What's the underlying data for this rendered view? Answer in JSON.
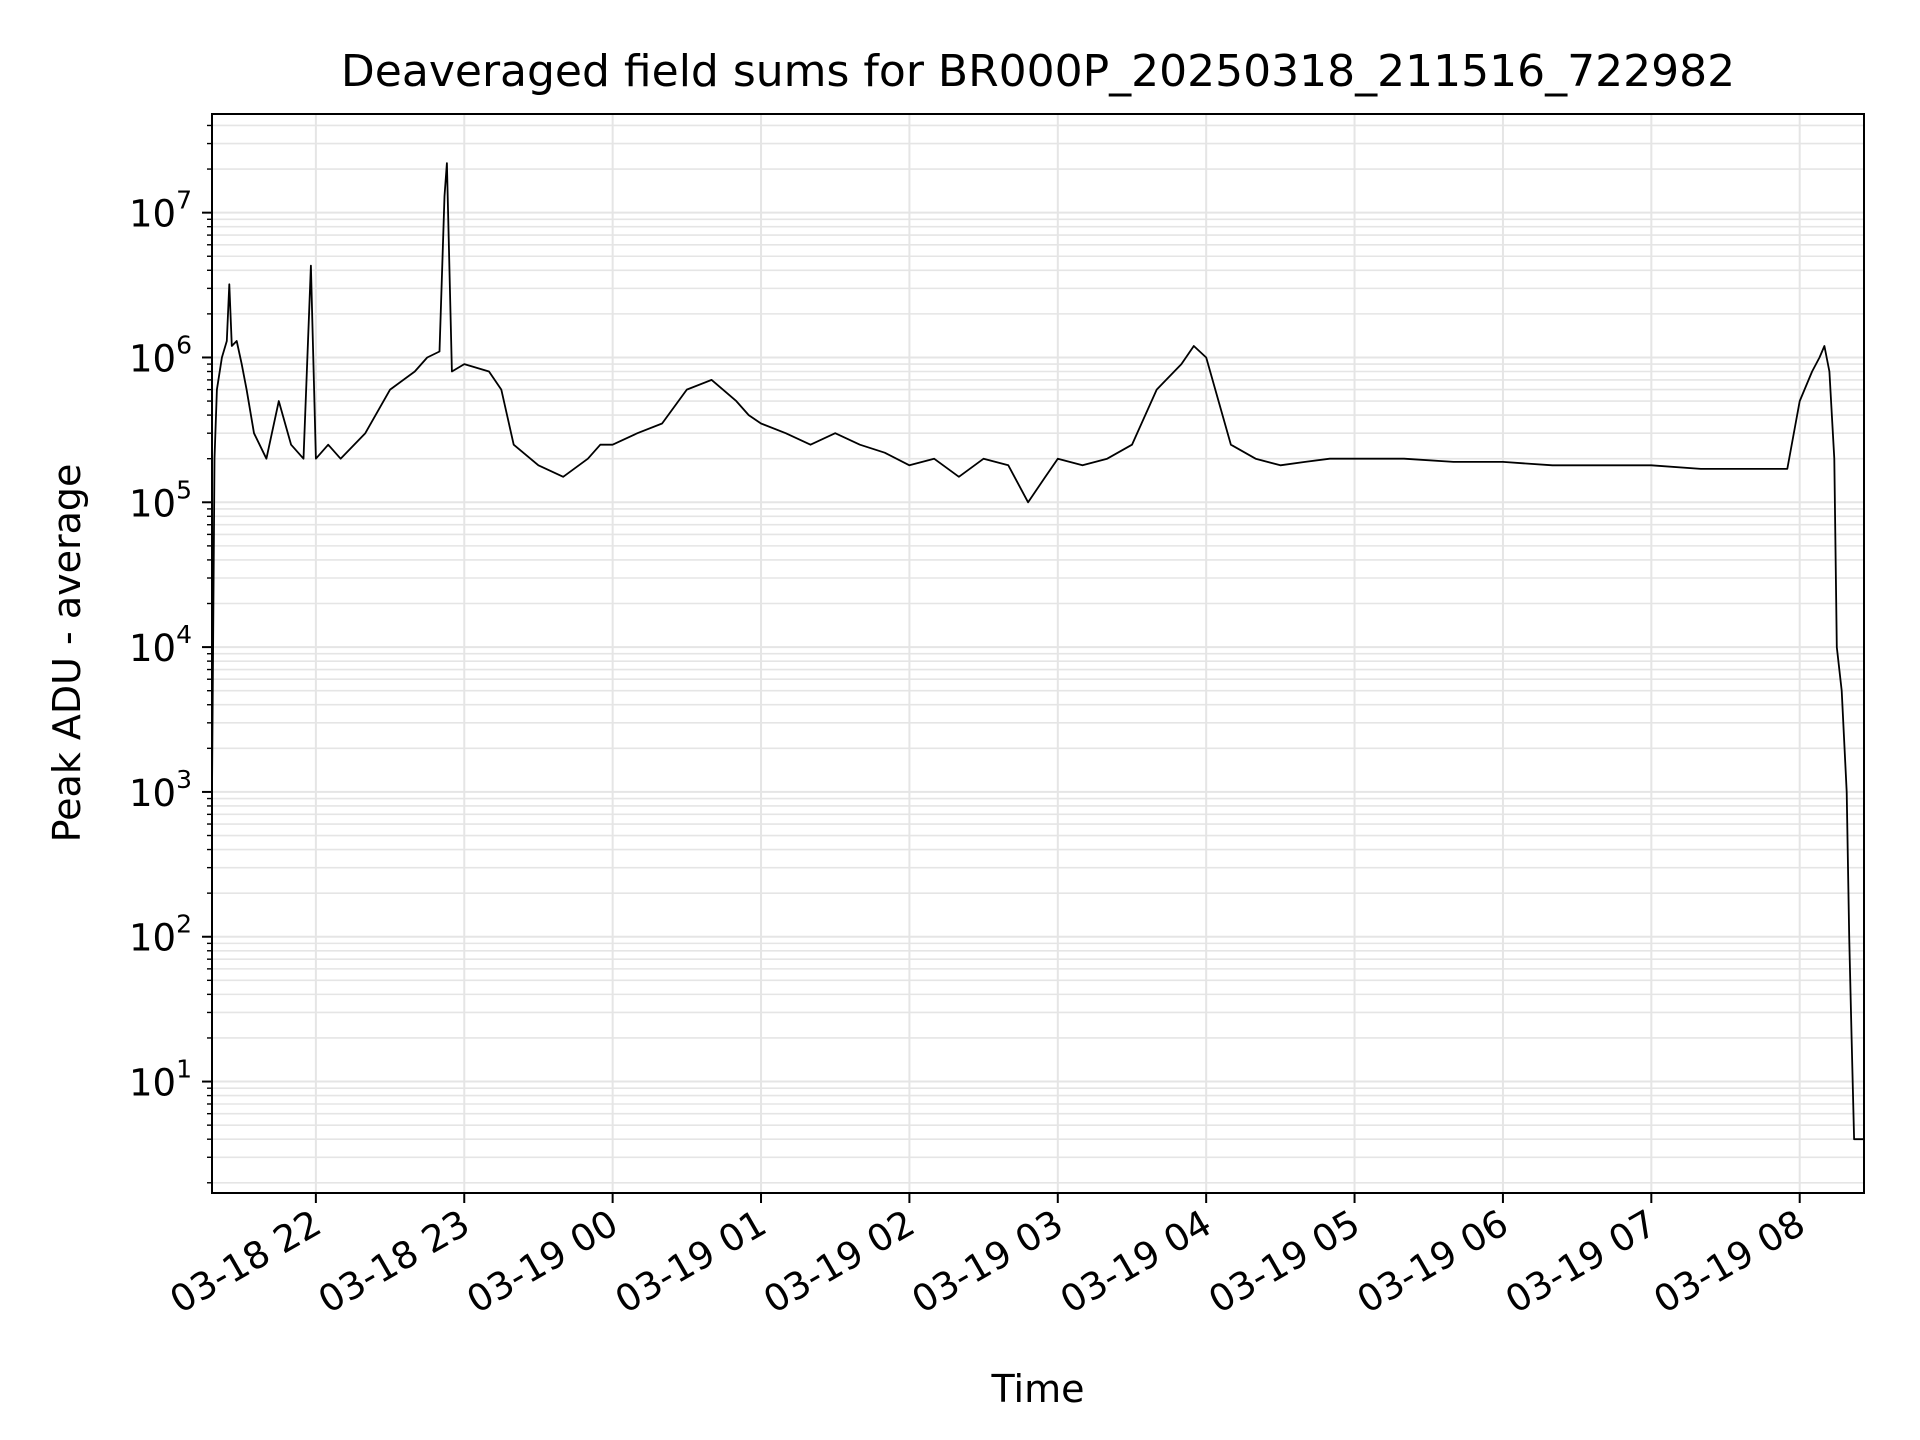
{
  "chart_data": {
    "type": "line",
    "title": "Deaveraged field sums for BR000P_20250318_211516_722982",
    "xlabel": "Time",
    "ylabel": "Peak ADU - average",
    "yscale": "log",
    "grid": true,
    "grid_minor": true,
    "line_color": "#000000",
    "grid_color": "#e5e5e5",
    "xlim": [
      "2025-03-18T21:18",
      "2025-03-19T08:26"
    ],
    "ylim": [
      1.7,
      48000000
    ],
    "x_ticks": [
      {
        "value": "2025-03-18T22:00",
        "label": "03-18 22"
      },
      {
        "value": "2025-03-18T23:00",
        "label": "03-18 23"
      },
      {
        "value": "2025-03-19T00:00",
        "label": "03-19 00"
      },
      {
        "value": "2025-03-19T01:00",
        "label": "03-19 01"
      },
      {
        "value": "2025-03-19T02:00",
        "label": "03-19 02"
      },
      {
        "value": "2025-03-19T03:00",
        "label": "03-19 03"
      },
      {
        "value": "2025-03-19T04:00",
        "label": "03-19 04"
      },
      {
        "value": "2025-03-19T05:00",
        "label": "03-19 05"
      },
      {
        "value": "2025-03-19T06:00",
        "label": "03-19 06"
      },
      {
        "value": "2025-03-19T07:00",
        "label": "03-19 07"
      },
      {
        "value": "2025-03-19T08:00",
        "label": "03-19 08"
      }
    ],
    "y_ticks": [
      {
        "value": 10,
        "base": "10",
        "exp": "1"
      },
      {
        "value": 100,
        "base": "10",
        "exp": "2"
      },
      {
        "value": 1000,
        "base": "10",
        "exp": "3"
      },
      {
        "value": 10000,
        "base": "10",
        "exp": "4"
      },
      {
        "value": 100000,
        "base": "10",
        "exp": "5"
      },
      {
        "value": 1000000,
        "base": "10",
        "exp": "6"
      },
      {
        "value": 10000000,
        "base": "10",
        "exp": "7"
      }
    ],
    "series": [
      {
        "x": [
          "2025-03-18T21:18",
          "2025-03-18T21:19",
          "2025-03-18T21:20",
          "2025-03-18T21:22",
          "2025-03-18T21:24",
          "2025-03-18T21:25",
          "2025-03-18T21:26",
          "2025-03-18T21:28",
          "2025-03-18T21:30",
          "2025-03-18T21:32",
          "2025-03-18T21:35",
          "2025-03-18T21:40",
          "2025-03-18T21:45",
          "2025-03-18T21:50",
          "2025-03-18T21:55",
          "2025-03-18T21:58",
          "2025-03-18T22:00",
          "2025-03-18T22:05",
          "2025-03-18T22:10",
          "2025-03-18T22:20",
          "2025-03-18T22:30",
          "2025-03-18T22:40",
          "2025-03-18T22:45",
          "2025-03-18T22:50",
          "2025-03-18T22:52",
          "2025-03-18T22:53",
          "2025-03-18T22:55",
          "2025-03-18T23:00",
          "2025-03-18T23:10",
          "2025-03-18T23:15",
          "2025-03-18T23:20",
          "2025-03-18T23:30",
          "2025-03-18T23:40",
          "2025-03-18T23:50",
          "2025-03-18T23:55",
          "2025-03-19T00:00",
          "2025-03-19T00:10",
          "2025-03-19T00:20",
          "2025-03-19T00:30",
          "2025-03-19T00:40",
          "2025-03-19T00:50",
          "2025-03-19T00:55",
          "2025-03-19T01:00",
          "2025-03-19T01:10",
          "2025-03-19T01:20",
          "2025-03-19T01:30",
          "2025-03-19T01:40",
          "2025-03-19T01:50",
          "2025-03-19T02:00",
          "2025-03-19T02:10",
          "2025-03-19T02:20",
          "2025-03-19T02:30",
          "2025-03-19T02:40",
          "2025-03-19T02:48",
          "2025-03-19T02:55",
          "2025-03-19T03:00",
          "2025-03-19T03:10",
          "2025-03-19T03:20",
          "2025-03-19T03:30",
          "2025-03-19T03:40",
          "2025-03-19T03:50",
          "2025-03-19T03:55",
          "2025-03-19T04:00",
          "2025-03-19T04:10",
          "2025-03-19T04:20",
          "2025-03-19T04:30",
          "2025-03-19T04:40",
          "2025-03-19T04:50",
          "2025-03-19T05:00",
          "2025-03-19T05:20",
          "2025-03-19T05:40",
          "2025-03-19T06:00",
          "2025-03-19T06:20",
          "2025-03-19T06:40",
          "2025-03-19T07:00",
          "2025-03-19T07:20",
          "2025-03-19T07:40",
          "2025-03-19T07:55",
          "2025-03-19T08:00",
          "2025-03-19T08:05",
          "2025-03-19T08:08",
          "2025-03-19T08:10",
          "2025-03-19T08:12",
          "2025-03-19T08:14",
          "2025-03-19T08:15",
          "2025-03-19T08:17",
          "2025-03-19T08:19",
          "2025-03-19T08:20",
          "2025-03-19T08:21",
          "2025-03-19T08:22",
          "2025-03-19T08:23",
          "2025-03-19T08:24",
          "2025-03-19T08:25",
          "2025-03-19T08:26"
        ],
        "y": [
          1000,
          200000,
          600000,
          1000000,
          1300000,
          3200000,
          1200000,
          1300000,
          900000,
          600000,
          300000,
          200000,
          500000,
          250000,
          200000,
          4300000,
          200000,
          250000,
          200000,
          300000,
          600000,
          800000,
          1000000,
          1100000,
          13000000,
          22000000,
          800000,
          900000,
          800000,
          600000,
          250000,
          180000,
          150000,
          200000,
          250000,
          250000,
          300000,
          350000,
          600000,
          700000,
          500000,
          400000,
          350000,
          300000,
          250000,
          300000,
          250000,
          220000,
          180000,
          200000,
          150000,
          200000,
          180000,
          100000,
          150000,
          200000,
          180000,
          200000,
          250000,
          600000,
          900000,
          1200000,
          1000000,
          250000,
          200000,
          180000,
          190000,
          200000,
          200000,
          200000,
          190000,
          190000,
          180000,
          180000,
          180000,
          170000,
          170000,
          170000,
          500000,
          800000,
          1000000,
          1200000,
          800000,
          200000,
          10000,
          5000,
          1000,
          100,
          20,
          4,
          4,
          4,
          4,
          4
        ]
      }
    ]
  }
}
